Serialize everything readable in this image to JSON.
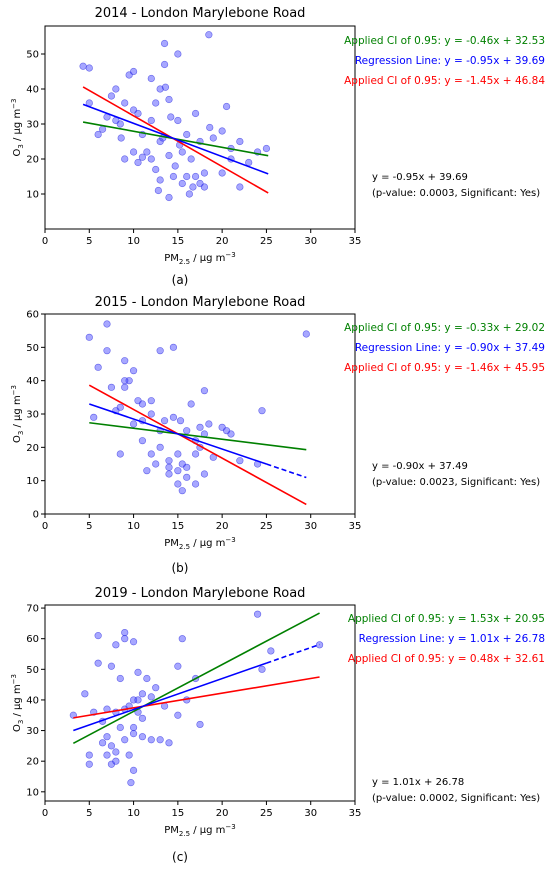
{
  "chart_data": [
    {
      "type": "scatter",
      "title": "2014 - London Marylebone Road",
      "caption": "(a)",
      "xlabel_main": "PM",
      "xlabel_sub": "2.5",
      "xlabel_rest": " / μg m",
      "xlabel_sup": "−3",
      "ylabel_main": "O",
      "ylabel_sub": "3",
      "ylabel_rest": " / μg m",
      "ylabel_sup": "−3",
      "xlim": [
        0,
        35
      ],
      "ylim": [
        0,
        58
      ],
      "xticks": [
        "0",
        "5",
        "10",
        "15",
        "20",
        "25",
        "30",
        "35"
      ],
      "yticks": [
        "10",
        "20",
        "30",
        "40",
        "50"
      ],
      "ytick_values": [
        10,
        20,
        30,
        40,
        50
      ],
      "xtick_values": [
        0,
        5,
        10,
        15,
        20,
        25,
        30,
        35
      ],
      "x_range": [
        4.3,
        25.2
      ],
      "regression_dashed_from": null,
      "lines": [
        {
          "label": "Applied CI of 0.95: y = -0.46x + 32.53",
          "slope": -0.46,
          "intercept": 32.53,
          "color": "#008000"
        },
        {
          "label": "Regression Line: y = -0.95x + 39.69",
          "slope": -0.95,
          "intercept": 39.69,
          "color": "#0000ff"
        },
        {
          "label": "Applied CI of 0.95: y = -1.45x + 46.84",
          "slope": -1.45,
          "intercept": 46.84,
          "color": "#ff0000"
        }
      ],
      "annotation": [
        "y = -0.95x + 39.69",
        "(p-value: 0.0003, Significant: Yes)"
      ],
      "points": [
        [
          4.3,
          46.5
        ],
        [
          5,
          46
        ],
        [
          5,
          36
        ],
        [
          6,
          27
        ],
        [
          6.5,
          28.5
        ],
        [
          7,
          32
        ],
        [
          7.5,
          38
        ],
        [
          8,
          40
        ],
        [
          8,
          31
        ],
        [
          8.5,
          30
        ],
        [
          8.6,
          26
        ],
        [
          9,
          20
        ],
        [
          9,
          36
        ],
        [
          9.5,
          44
        ],
        [
          10,
          45
        ],
        [
          10,
          34
        ],
        [
          10,
          22
        ],
        [
          10.5,
          19
        ],
        [
          10.5,
          33
        ],
        [
          11,
          27
        ],
        [
          11,
          20.5
        ],
        [
          11.5,
          22
        ],
        [
          12,
          43
        ],
        [
          12,
          31
        ],
        [
          12,
          20
        ],
        [
          12.5,
          17
        ],
        [
          12.5,
          36
        ],
        [
          12.8,
          11
        ],
        [
          13,
          14
        ],
        [
          13,
          25
        ],
        [
          13,
          40
        ],
        [
          13.3,
          26
        ],
        [
          13.5,
          53
        ],
        [
          13.5,
          47
        ],
        [
          13.6,
          40.5
        ],
        [
          14,
          21
        ],
        [
          14,
          37
        ],
        [
          14,
          9
        ],
        [
          14.2,
          32
        ],
        [
          14.5,
          15
        ],
        [
          14.7,
          18
        ],
        [
          15,
          50
        ],
        [
          15,
          31
        ],
        [
          15.2,
          24
        ],
        [
          15.5,
          22
        ],
        [
          15.5,
          13
        ],
        [
          16,
          27
        ],
        [
          16,
          15
        ],
        [
          16.3,
          10
        ],
        [
          16.5,
          20
        ],
        [
          16.7,
          12
        ],
        [
          17,
          15
        ],
        [
          17,
          33
        ],
        [
          17.5,
          13
        ],
        [
          17.5,
          25
        ],
        [
          18,
          16
        ],
        [
          18,
          12
        ],
        [
          18.5,
          55.5
        ],
        [
          18.6,
          29
        ],
        [
          19,
          26
        ],
        [
          20,
          28
        ],
        [
          20,
          16
        ],
        [
          20.5,
          35
        ],
        [
          21,
          20
        ],
        [
          21,
          23
        ],
        [
          22,
          25
        ],
        [
          22,
          12
        ],
        [
          23,
          19
        ],
        [
          24,
          22
        ],
        [
          25,
          23
        ]
      ]
    },
    {
      "type": "scatter",
      "title": "2015 - London Marylebone Road",
      "caption": "(b)",
      "xlabel_main": "PM",
      "xlabel_sub": "2.5",
      "xlabel_rest": " / μg m",
      "xlabel_sup": "−3",
      "ylabel_main": "O",
      "ylabel_sub": "3",
      "ylabel_rest": " / μg m",
      "ylabel_sup": "−3",
      "xlim": [
        0,
        35
      ],
      "ylim": [
        0,
        60
      ],
      "xticks": [
        "0",
        "5",
        "10",
        "15",
        "20",
        "25",
        "30",
        "35"
      ],
      "yticks": [
        "0",
        "10",
        "20",
        "30",
        "40",
        "50",
        "60"
      ],
      "ytick_values": [
        0,
        10,
        20,
        30,
        40,
        50,
        60
      ],
      "xtick_values": [
        0,
        5,
        10,
        15,
        20,
        25,
        30,
        35
      ],
      "x_range": [
        5,
        29.5
      ],
      "regression_dashed_from": 25,
      "lines": [
        {
          "label": "Applied CI of 0.95: y = -0.33x + 29.02",
          "slope": -0.33,
          "intercept": 29.02,
          "color": "#008000"
        },
        {
          "label": "Regression Line: y = -0.90x + 37.49",
          "slope": -0.9,
          "intercept": 37.49,
          "color": "#0000ff"
        },
        {
          "label": "Applied CI of 0.95: y = -1.46x + 45.95",
          "slope": -1.46,
          "intercept": 45.95,
          "color": "#ff0000"
        }
      ],
      "annotation": [
        "y = -0.90x + 37.49",
        "(p-value: 0.0023, Significant: Yes)"
      ],
      "points": [
        [
          5,
          53
        ],
        [
          5.5,
          29
        ],
        [
          6,
          44
        ],
        [
          7,
          57
        ],
        [
          7,
          49
        ],
        [
          7.5,
          38
        ],
        [
          8,
          31
        ],
        [
          8.5,
          18
        ],
        [
          8.5,
          32
        ],
        [
          9,
          46
        ],
        [
          9,
          38
        ],
        [
          9.5,
          40
        ],
        [
          10,
          43
        ],
        [
          10,
          27
        ],
        [
          10.5,
          34
        ],
        [
          11,
          22
        ],
        [
          11,
          33
        ],
        [
          11,
          28
        ],
        [
          11.5,
          13
        ],
        [
          12,
          30
        ],
        [
          12,
          18
        ],
        [
          12.5,
          15
        ],
        [
          13,
          25
        ],
        [
          13,
          20
        ],
        [
          13,
          49
        ],
        [
          13.5,
          28
        ],
        [
          14,
          14
        ],
        [
          14,
          16
        ],
        [
          14,
          12
        ],
        [
          14.5,
          29
        ],
        [
          14.5,
          50
        ],
        [
          15,
          18
        ],
        [
          15,
          13
        ],
        [
          15,
          9
        ],
        [
          15.3,
          28
        ],
        [
          15.5,
          15
        ],
        [
          15.5,
          7
        ],
        [
          16,
          25
        ],
        [
          16,
          14
        ],
        [
          16,
          11
        ],
        [
          16.5,
          33
        ],
        [
          17,
          22
        ],
        [
          17,
          18
        ],
        [
          17,
          9
        ],
        [
          17.5,
          26
        ],
        [
          17.5,
          20
        ],
        [
          18,
          37
        ],
        [
          18,
          12
        ],
        [
          18,
          24
        ],
        [
          18.5,
          27
        ],
        [
          19,
          17
        ],
        [
          20,
          26
        ],
        [
          20.5,
          25
        ],
        [
          21,
          24
        ],
        [
          22,
          16
        ],
        [
          24,
          15
        ],
        [
          24.5,
          31
        ],
        [
          29.5,
          54
        ],
        [
          9,
          40
        ],
        [
          12,
          34
        ]
      ]
    },
    {
      "type": "scatter",
      "title": "2019 - London Marylebone Road",
      "caption": "(c)",
      "xlabel_main": "PM",
      "xlabel_sub": "2.5",
      "xlabel_rest": " / μg m",
      "xlabel_sup": "−3",
      "ylabel_main": "O",
      "ylabel_sub": "3",
      "ylabel_rest": " / μg m",
      "ylabel_sup": "−3",
      "xlim": [
        0,
        35
      ],
      "ylim": [
        7,
        71
      ],
      "xticks": [
        "0",
        "5",
        "10",
        "15",
        "20",
        "25",
        "30",
        "35"
      ],
      "yticks": [
        "10",
        "20",
        "30",
        "40",
        "50",
        "60",
        "70"
      ],
      "ytick_values": [
        10,
        20,
        30,
        40,
        50,
        60,
        70
      ],
      "xtick_values": [
        0,
        5,
        10,
        15,
        20,
        25,
        30,
        35
      ],
      "x_range": [
        3.2,
        31
      ],
      "regression_dashed_from": 25,
      "lines": [
        {
          "label": "Applied CI of 0.95: y = 1.53x + 20.95",
          "slope": 1.53,
          "intercept": 20.95,
          "color": "#008000"
        },
        {
          "label": "Regression Line: y = 1.01x + 26.78",
          "slope": 1.01,
          "intercept": 26.78,
          "color": "#0000ff"
        },
        {
          "label": "Applied CI of 0.95: y = 0.48x + 32.61",
          "slope": 0.48,
          "intercept": 32.61,
          "color": "#ff0000"
        }
      ],
      "annotation": [
        "y = 1.01x + 26.78",
        "(p-value: 0.0002, Significant: Yes)"
      ],
      "points": [
        [
          3.2,
          35
        ],
        [
          4.5,
          42
        ],
        [
          5,
          22
        ],
        [
          5,
          19
        ],
        [
          5.5,
          36
        ],
        [
          6,
          61
        ],
        [
          6,
          52
        ],
        [
          6.5,
          26
        ],
        [
          6.5,
          33
        ],
        [
          7,
          37
        ],
        [
          7,
          28
        ],
        [
          7,
          22
        ],
        [
          7.5,
          51
        ],
        [
          7.5,
          25
        ],
        [
          7.5,
          19
        ],
        [
          8,
          58
        ],
        [
          8,
          23
        ],
        [
          8,
          36
        ],
        [
          8.5,
          47
        ],
        [
          8.5,
          31
        ],
        [
          9,
          37
        ],
        [
          9,
          62
        ],
        [
          9,
          60
        ],
        [
          9.5,
          22
        ],
        [
          9.5,
          38
        ],
        [
          9.7,
          13
        ],
        [
          10,
          59
        ],
        [
          10,
          40
        ],
        [
          10,
          31
        ],
        [
          10,
          29
        ],
        [
          10,
          17
        ],
        [
          10.5,
          49
        ],
        [
          10.5,
          40
        ],
        [
          10.5,
          36
        ],
        [
          11,
          34
        ],
        [
          11,
          28
        ],
        [
          11.5,
          47
        ],
        [
          12,
          41
        ],
        [
          12,
          27
        ],
        [
          12.5,
          44
        ],
        [
          13,
          27
        ],
        [
          13.5,
          38
        ],
        [
          14,
          26
        ],
        [
          15,
          51
        ],
        [
          15,
          35
        ],
        [
          15.5,
          60
        ],
        [
          16,
          40
        ],
        [
          17,
          47
        ],
        [
          17.5,
          32
        ],
        [
          24,
          68
        ],
        [
          24.5,
          50
        ],
        [
          25.5,
          56
        ],
        [
          31,
          58
        ],
        [
          8,
          20
        ],
        [
          9,
          27
        ],
        [
          11,
          42
        ]
      ]
    }
  ]
}
